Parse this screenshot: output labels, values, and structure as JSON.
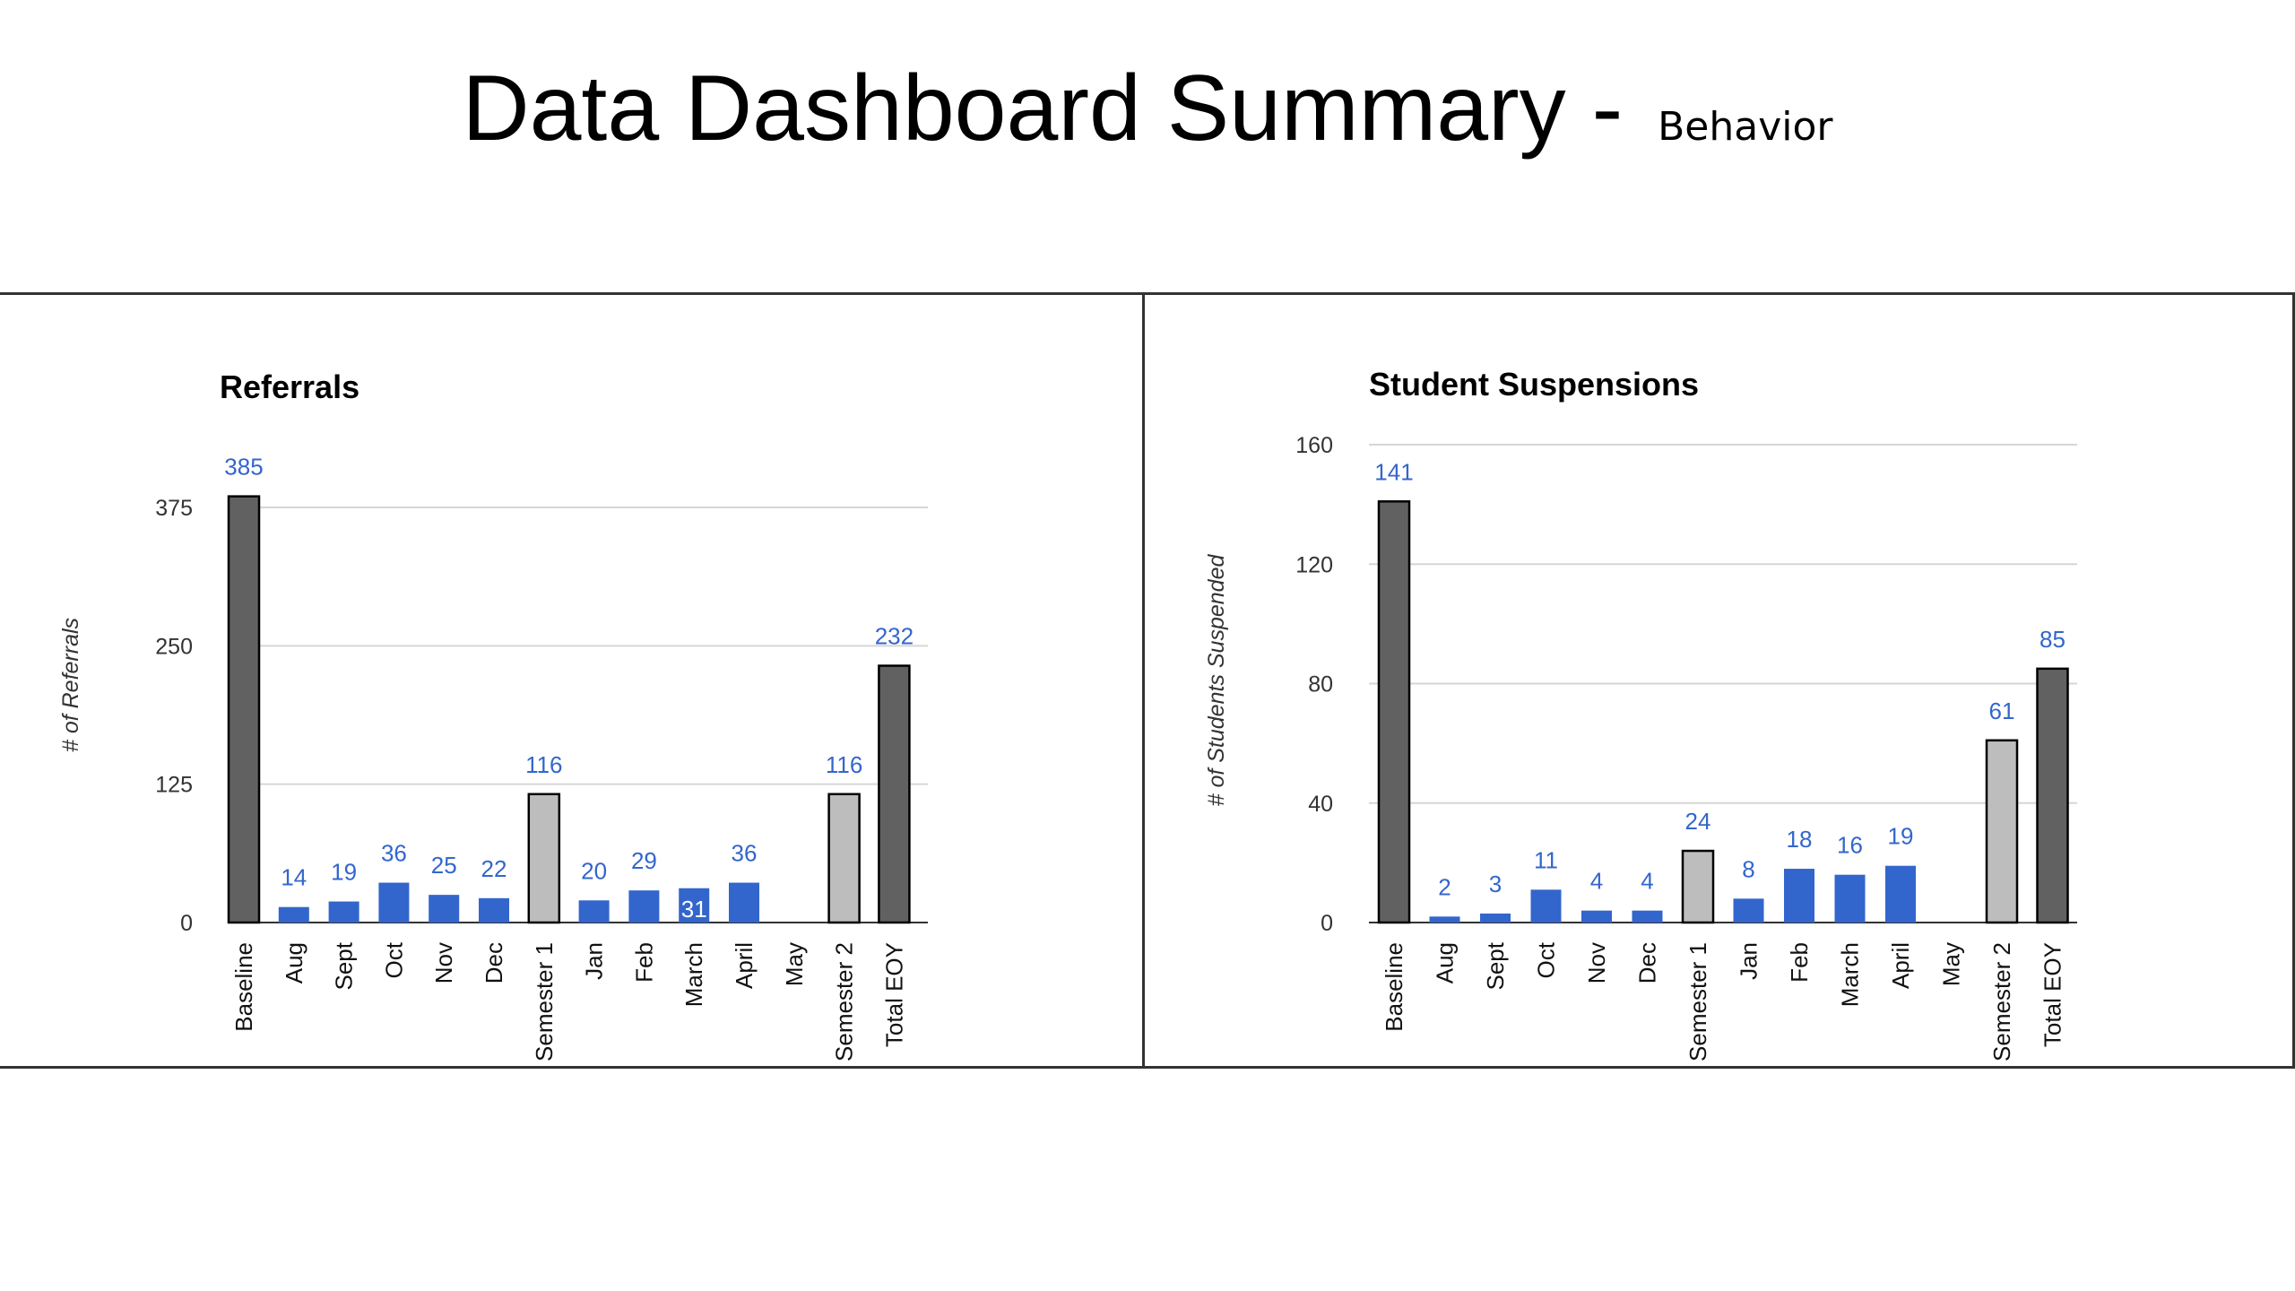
{
  "title": {
    "main": "Data Dashboard Summary - ",
    "sub": "Behavior"
  },
  "colors": {
    "monthly": "#3366cc",
    "semester": "#bdbdbd",
    "total": "#616161",
    "value_label": "#3366cc",
    "gridline": "#d6d6d6",
    "axis_text": "#333333"
  },
  "chart_data": [
    {
      "type": "bar",
      "title": "Referrals",
      "xlabel": "",
      "ylabel": "# of Referrals",
      "ylim": [
        0,
        375
      ],
      "yticks": [
        0,
        125,
        250,
        375
      ],
      "grid": true,
      "categories": [
        "Baseline",
        "Aug",
        "Sept",
        "Oct",
        "Nov",
        "Dec",
        "Semester 1",
        "Jan",
        "Feb",
        "March",
        "April",
        "May",
        "Semester 2",
        "Total EOY"
      ],
      "values": [
        385,
        14,
        19,
        36,
        25,
        22,
        116,
        20,
        29,
        31,
        36,
        null,
        116,
        232
      ],
      "kinds": [
        "total",
        "month",
        "month",
        "month",
        "month",
        "month",
        "semester",
        "month",
        "month",
        "month",
        "month",
        "month",
        "semester",
        "total"
      ],
      "inside_labels": [
        9
      ]
    },
    {
      "type": "bar",
      "title": "Student Suspensions",
      "xlabel": "",
      "ylabel": "# of Students Suspended",
      "ylim": [
        0,
        160
      ],
      "yticks": [
        0,
        40,
        80,
        120,
        160
      ],
      "grid": true,
      "categories": [
        "Baseline",
        "Aug",
        "Sept",
        "Oct",
        "Nov",
        "Dec",
        "Semester 1",
        "Jan",
        "Feb",
        "March",
        "April",
        "May",
        "Semester 2",
        "Total EOY"
      ],
      "values": [
        141,
        2,
        3,
        11,
        4,
        4,
        24,
        8,
        18,
        16,
        19,
        null,
        61,
        85
      ],
      "kinds": [
        "total",
        "month",
        "month",
        "month",
        "month",
        "month",
        "semester",
        "month",
        "month",
        "month",
        "month",
        "month",
        "semester",
        "total"
      ],
      "inside_labels": []
    }
  ]
}
